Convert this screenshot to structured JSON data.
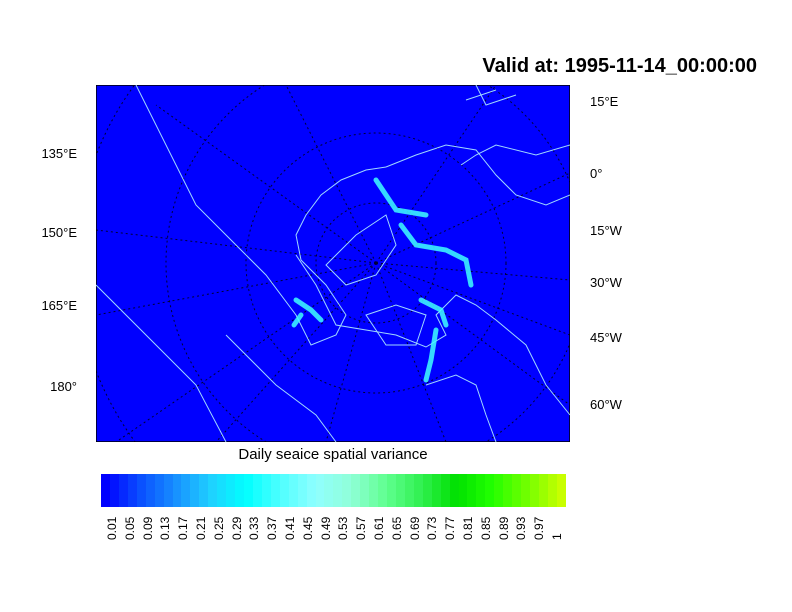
{
  "title": "Valid at: 1995-11-14_00:00:00",
  "map": {
    "left_lon_labels": [
      "135°E",
      "150°E",
      "165°E",
      "180°"
    ],
    "right_lon_labels": [
      "15°E",
      "0°",
      "15°W",
      "30°W",
      "45°W",
      "60°W"
    ],
    "background_color": "#0000ff",
    "coast_color": "#a0d8ff",
    "ice_color": "#40ffff"
  },
  "colorbar": {
    "title": "Daily seaice spatial variance",
    "labels": [
      "0.01",
      "0.05",
      "0.09",
      "0.13",
      "0.17",
      "0.21",
      "0.25",
      "0.29",
      "0.33",
      "0.37",
      "0.41",
      "0.45",
      "0.49",
      "0.53",
      "0.57",
      "0.61",
      "0.65",
      "0.69",
      "0.73",
      "0.77",
      "0.81",
      "0.85",
      "0.89",
      "0.93",
      "0.97",
      "1"
    ],
    "color_stops": [
      "#0000ff",
      "#0a50ff",
      "#1890ff",
      "#20d0ff",
      "#00ffff",
      "#50ffff",
      "#90ffff",
      "#90ffd8",
      "#60ff90",
      "#30f050",
      "#00e000",
      "#20ff00",
      "#70ff00",
      "#c8ff00"
    ]
  }
}
